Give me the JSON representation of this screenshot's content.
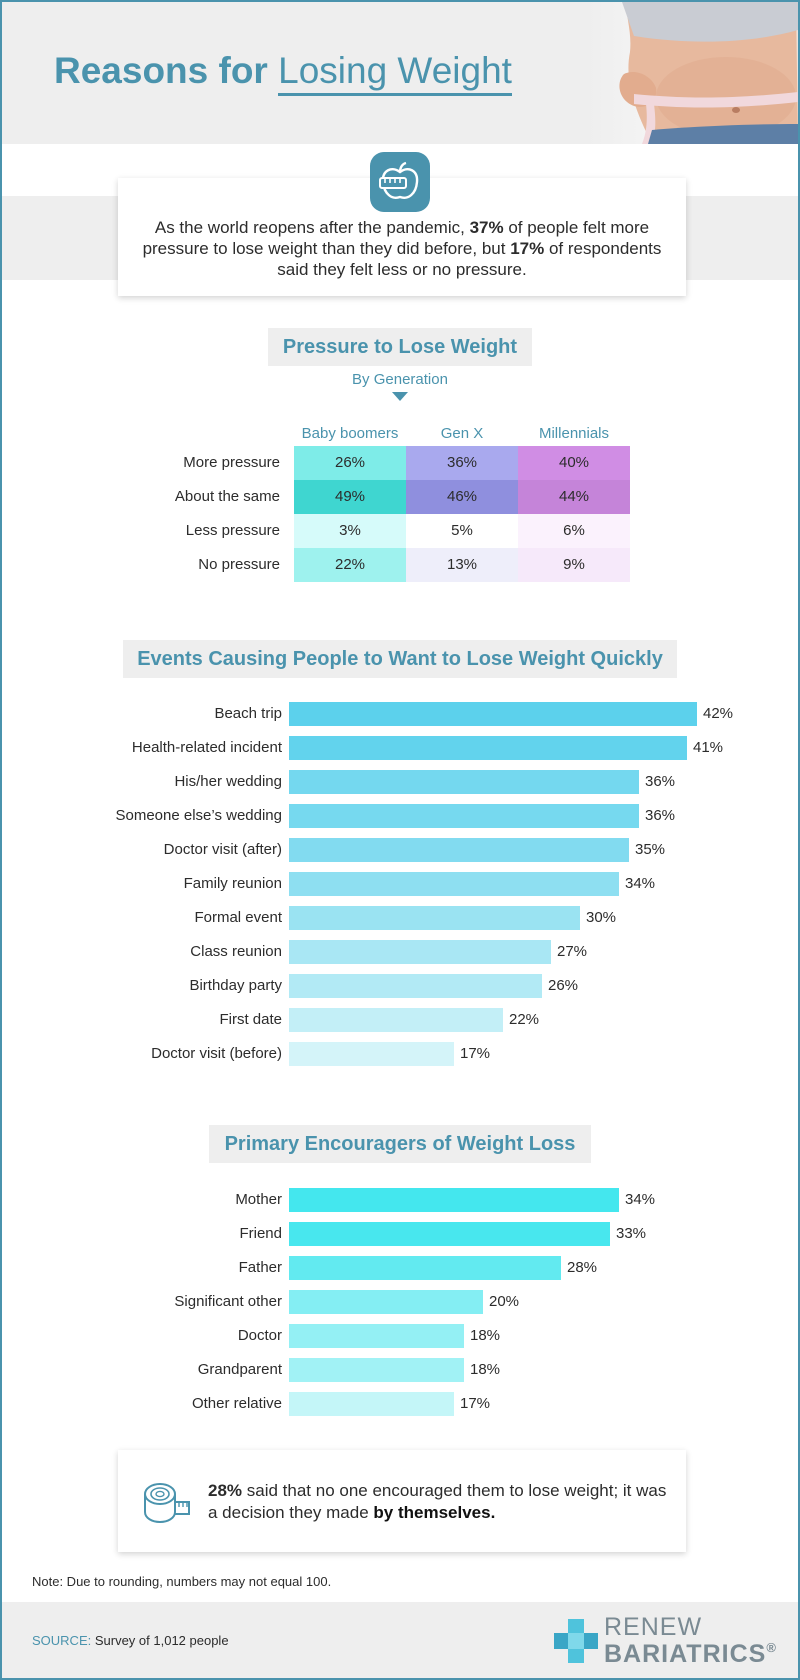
{
  "header": {
    "title_part1": "Reasons for ",
    "title_part2": "Losing Weight"
  },
  "intro": {
    "text_1": "As the world reopens after the pandemic, ",
    "bold_1": "37%",
    "text_2": " of people felt more pressure to lose weight than they did before, but ",
    "bold_2": "17%",
    "text_3": " of respondents said they felt less or no pressure.",
    "icon": "apple-measuring-tape-icon"
  },
  "chart_data": [
    {
      "type": "table",
      "title": "Pressure to Lose Weight",
      "subtitle": "By Generation",
      "columns": [
        "Baby boomers",
        "Gen X",
        "Millennials"
      ],
      "rows": [
        {
          "label": "More pressure",
          "values": [
            "26%",
            "36%",
            "40%"
          ]
        },
        {
          "label": "About the same",
          "values": [
            "49%",
            "46%",
            "44%"
          ]
        },
        {
          "label": "Less pressure",
          "values": [
            "3%",
            "5%",
            "6%"
          ]
        },
        {
          "label": "No pressure",
          "values": [
            "22%",
            "13%",
            "9%"
          ]
        }
      ]
    },
    {
      "type": "bar",
      "orientation": "horizontal",
      "title": "Events Causing People to Want to Lose Weight Quickly",
      "categories": [
        "Beach trip",
        "Health-related incident",
        "His/her wedding",
        "Someone else’s wedding",
        "Doctor visit (after)",
        "Family reunion",
        "Formal event",
        "Class reunion",
        "Birthday party",
        "First date",
        "Doctor visit (before)"
      ],
      "values": [
        42,
        41,
        36,
        36,
        35,
        34,
        30,
        27,
        26,
        22,
        17
      ],
      "value_labels": [
        "42%",
        "41%",
        "36%",
        "36%",
        "35%",
        "34%",
        "30%",
        "27%",
        "26%",
        "22%",
        "17%"
      ],
      "xlim": [
        0,
        42
      ]
    },
    {
      "type": "bar",
      "orientation": "horizontal",
      "title": "Primary Encouragers of Weight Loss",
      "categories": [
        "Mother",
        "Friend",
        "Father",
        "Significant other",
        "Doctor",
        "Grandparent",
        "Other relative"
      ],
      "values": [
        34,
        33,
        28,
        20,
        18,
        18,
        17
      ],
      "value_labels": [
        "34%",
        "33%",
        "28%",
        "20%",
        "18%",
        "18%",
        "17%"
      ],
      "xlim": [
        0,
        42
      ]
    }
  ],
  "colors": {
    "accent": "#4a93ad",
    "table": {
      "Baby boomers": [
        "#7eece8",
        "#3fd6d0",
        "#d6fbfa",
        "#9ef2ee"
      ],
      "Gen X": [
        "#a9a9ee",
        "#8f8fde",
        "#ffffff",
        "#eeeefa"
      ],
      "Millennials": [
        "#d08de4",
        "#c584d9",
        "#fbf2fd",
        "#f6e9fa"
      ]
    },
    "events_bars": [
      "#5cd1ec",
      "#62d3ed",
      "#74d8ef",
      "#76d9ef",
      "#82dbf0",
      "#8edff1",
      "#9ae3f2",
      "#a9e7f4",
      "#b2eaf5",
      "#c3eff7",
      "#d4f4f9"
    ],
    "encourager_bars": [
      "#44e7ee",
      "#48e7ee",
      "#62eaf0",
      "#84eef3",
      "#94f0f4",
      "#a1f2f5",
      "#c4f6f8"
    ]
  },
  "note": {
    "bold": "28%",
    "text_1": " said that no one encouraged them to lose weight; it was a decision they made ",
    "text_2": "by themselves.",
    "icon": "measuring-tape-icon"
  },
  "footnote": "Note: Due to rounding, numbers may not equal 100.",
  "source": {
    "label": "SOURCE:",
    "text": " Survey of 1,012 people"
  },
  "logo": {
    "line1": "RENEW",
    "line2": "BARIATRICS",
    "mark": "®"
  }
}
